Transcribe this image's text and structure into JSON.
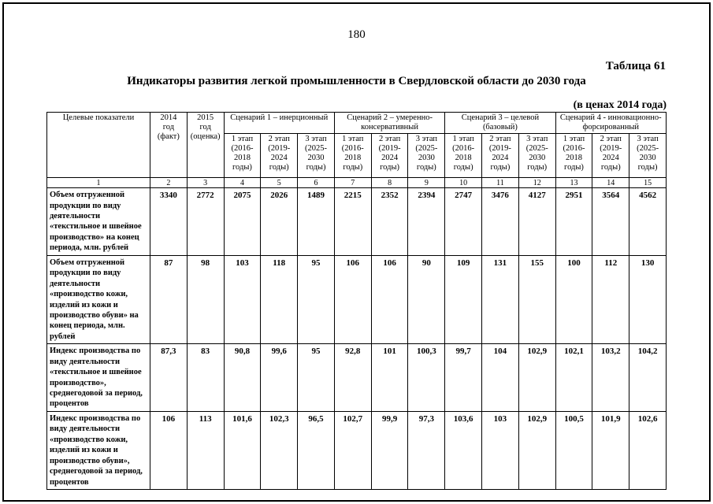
{
  "page": {
    "number": "180",
    "table_label": "Таблица 61",
    "title": "Индикаторы развития легкой промышленности в Свердловской области до 2030 года",
    "price_note": "(в ценах 2014 года)"
  },
  "table": {
    "header": {
      "indicator_col": "Целевые показатели",
      "year_2014": "2014\nгод\n(факт)",
      "year_2015": "2015\nгод\n(оценка)",
      "scenarios": [
        "Сценарий 1 – инерционный",
        "Сценарий 2 – умеренно-консервативный",
        "Сценарий 3 – целевой (базовый)",
        "Сценарий 4 - инновационно-форсированный"
      ],
      "stages": [
        "1 этап (2016-2018 годы)",
        "2 этап (2019-2024 годы)",
        "3 этап (2025-2030 годы)"
      ]
    },
    "column_numbers": [
      "1",
      "2",
      "3",
      "4",
      "5",
      "6",
      "7",
      "8",
      "9",
      "10",
      "11",
      "12",
      "13",
      "14",
      "15"
    ],
    "rows": [
      {
        "indicator": "Объем отгруженной продукции по виду деятельности «текстильное и швейное производство» на конец периода, млн. рублей",
        "values": [
          "3340",
          "2772",
          "2075",
          "2026",
          "1489",
          "2215",
          "2352",
          "2394",
          "2747",
          "3476",
          "4127",
          "2951",
          "3564",
          "4562"
        ]
      },
      {
        "indicator": "Объем отгруженной продукции по виду деятельности «производство кожи, изделий из кожи и производство обуви» на конец периода, млн. рублей",
        "values": [
          "87",
          "98",
          "103",
          "118",
          "95",
          "106",
          "106",
          "90",
          "109",
          "131",
          "155",
          "100",
          "112",
          "130"
        ]
      },
      {
        "indicator": "Индекс производства по виду деятельности «текстильное и швейное производство», среднегодовой за период, процентов",
        "values": [
          "87,3",
          "83",
          "90,8",
          "99,6",
          "95",
          "92,8",
          "101",
          "100,3",
          "99,7",
          "104",
          "102,9",
          "102,1",
          "103,2",
          "104,2"
        ]
      },
      {
        "indicator": "Индекс производства по виду деятельности «производство кожи, изделий из кожи и производство обуви», среднегодовой за период, процентов",
        "values": [
          "106",
          "113",
          "101,6",
          "102,3",
          "96,5",
          "102,7",
          "99,9",
          "97,3",
          "103,6",
          "103",
          "102,9",
          "100,5",
          "101,9",
          "102,6"
        ]
      }
    ]
  }
}
